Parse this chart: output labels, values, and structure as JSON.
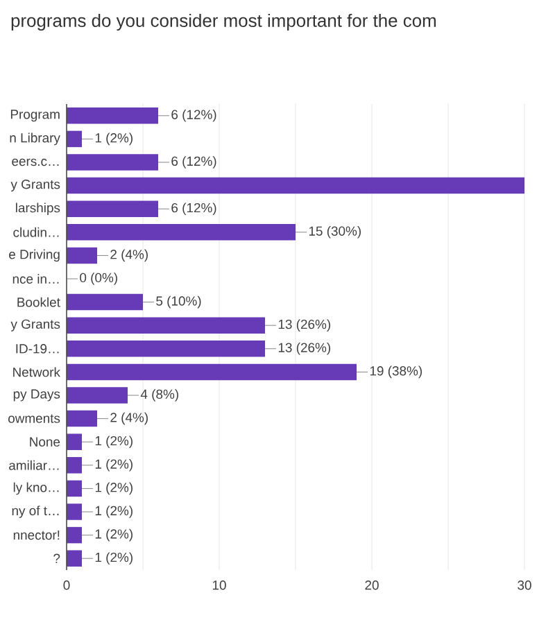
{
  "chart_data": {
    "type": "bar",
    "orientation": "horizontal",
    "title": "programs do you consider most important for the com",
    "categories": [
      "Program",
      "n Library",
      "eers.c…",
      "y Grants",
      "larships",
      "cludin…",
      "e Driving",
      "nce in…",
      "Booklet",
      "y Grants",
      "ID-19…",
      "Network",
      "py Days",
      "owments",
      "None",
      "amiliar…",
      "ly kno…",
      "ny of t…",
      "nnector!",
      "?"
    ],
    "values": [
      6,
      1,
      6,
      30,
      6,
      15,
      2,
      0,
      5,
      13,
      13,
      19,
      4,
      2,
      1,
      1,
      1,
      1,
      1,
      1
    ],
    "value_labels": [
      "6 (12%)",
      "1 (2%)",
      "6 (12%)",
      null,
      "6 (12%)",
      "15 (30%)",
      "2 (4%)",
      "0 (0%)",
      "5 (10%)",
      "13 (26%)",
      "13 (26%)",
      "19 (38%)",
      "4 (8%)",
      "2 (4%)",
      "1 (2%)",
      "1 (2%)",
      "1 (2%)",
      "1 (2%)",
      "1 (2%)",
      "1 (2%)"
    ],
    "color": "#673ab7",
    "xlim": [
      0,
      30
    ],
    "xticks": [
      0,
      {
        "value": 5,
        "label": null
      },
      10,
      {
        "value": 15,
        "label": null
      },
      20,
      {
        "value": 25,
        "label": null
      },
      30
    ],
    "grid": "x"
  }
}
